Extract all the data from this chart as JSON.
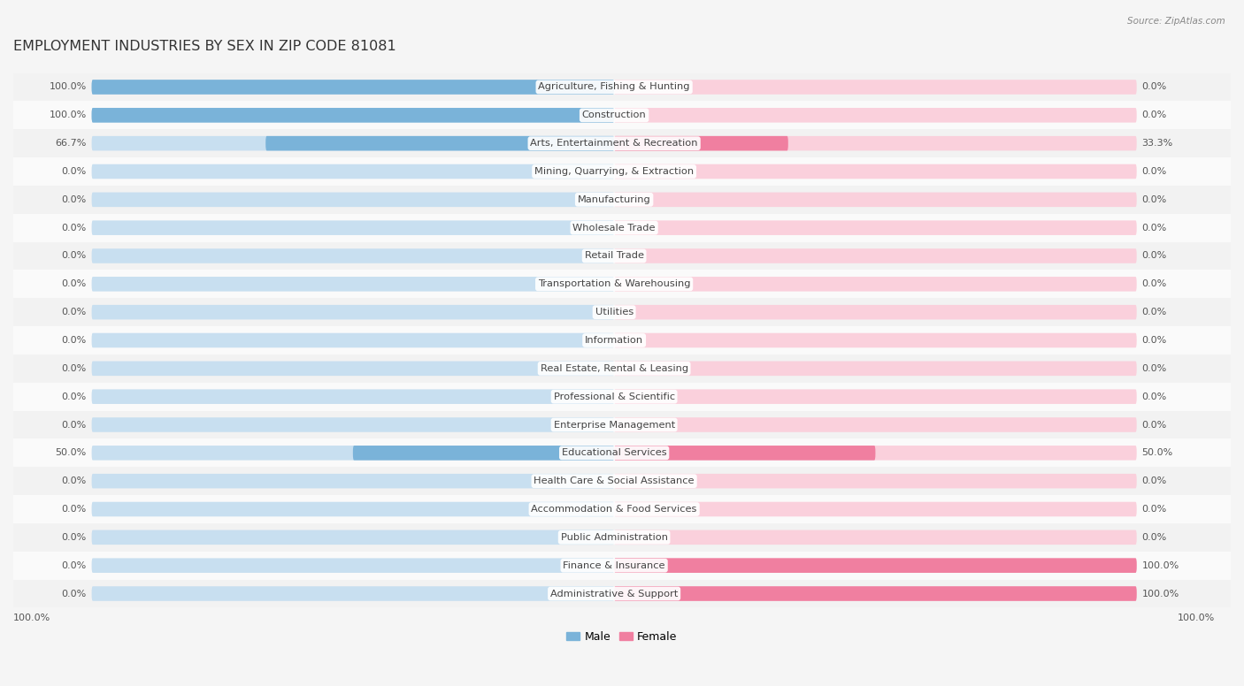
{
  "title": "EMPLOYMENT INDUSTRIES BY SEX IN ZIP CODE 81081",
  "source": "Source: ZipAtlas.com",
  "categories": [
    "Agriculture, Fishing & Hunting",
    "Construction",
    "Arts, Entertainment & Recreation",
    "Mining, Quarrying, & Extraction",
    "Manufacturing",
    "Wholesale Trade",
    "Retail Trade",
    "Transportation & Warehousing",
    "Utilities",
    "Information",
    "Real Estate, Rental & Leasing",
    "Professional & Scientific",
    "Enterprise Management",
    "Educational Services",
    "Health Care & Social Assistance",
    "Accommodation & Food Services",
    "Public Administration",
    "Finance & Insurance",
    "Administrative & Support"
  ],
  "male": [
    100.0,
    100.0,
    66.7,
    0.0,
    0.0,
    0.0,
    0.0,
    0.0,
    0.0,
    0.0,
    0.0,
    0.0,
    0.0,
    50.0,
    0.0,
    0.0,
    0.0,
    0.0,
    0.0
  ],
  "female": [
    0.0,
    0.0,
    33.3,
    0.0,
    0.0,
    0.0,
    0.0,
    0.0,
    0.0,
    0.0,
    0.0,
    0.0,
    0.0,
    50.0,
    0.0,
    0.0,
    0.0,
    100.0,
    100.0
  ],
  "male_color": "#7ab3d9",
  "female_color": "#f07fa0",
  "male_bg_color": "#c8dff0",
  "female_bg_color": "#fad0dc",
  "row_bg_light": "#f2f2f2",
  "row_bg_white": "#fafafa",
  "row_separator": "#e0e0e0",
  "title_fontsize": 11.5,
  "label_fontsize": 8.2,
  "value_fontsize": 8.0,
  "bar_height": 0.52,
  "bg_color": "#f5f5f5"
}
